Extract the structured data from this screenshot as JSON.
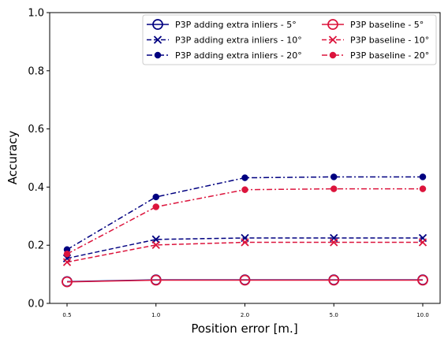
{
  "chart_data": {
    "type": "line",
    "title": "",
    "xlabel": "Position error [m.]",
    "ylabel": "Accuracy",
    "categories": [
      "0.5",
      "1.0",
      "2.0",
      "5.0",
      "10.0"
    ],
    "ylim": [
      0,
      1.0
    ],
    "yticks": [
      "0.0",
      "0.2",
      "0.4",
      "0.6",
      "0.8",
      "1.0"
    ],
    "grid": false,
    "legend_position": "top-right",
    "series": [
      {
        "name": "P3P adding extra inliers - 5°",
        "color": "#000080",
        "dash": "solid",
        "marker": "open-circle",
        "values": [
          0.075,
          0.081,
          0.081,
          0.081,
          0.081
        ]
      },
      {
        "name": "P3P adding extra inliers - 10°",
        "color": "#000080",
        "dash": "dashed",
        "marker": "x",
        "values": [
          0.155,
          0.22,
          0.225,
          0.225,
          0.225
        ]
      },
      {
        "name": "P3P adding extra inliers - 20°",
        "color": "#000080",
        "dash": "dashdot",
        "marker": "dot",
        "values": [
          0.185,
          0.366,
          0.432,
          0.435,
          0.435
        ]
      },
      {
        "name": "P3P baseline - 5°",
        "color": "#dc143c",
        "dash": "solid",
        "marker": "open-circle",
        "values": [
          0.074,
          0.08,
          0.08,
          0.08,
          0.08
        ]
      },
      {
        "name": "P3P baseline - 10°",
        "color": "#dc143c",
        "dash": "dashed",
        "marker": "x",
        "values": [
          0.142,
          0.201,
          0.21,
          0.21,
          0.21
        ]
      },
      {
        "name": "P3P baseline - 20°",
        "color": "#dc143c",
        "dash": "dashdot",
        "marker": "dot",
        "values": [
          0.17,
          0.332,
          0.391,
          0.394,
          0.394
        ]
      }
    ]
  }
}
